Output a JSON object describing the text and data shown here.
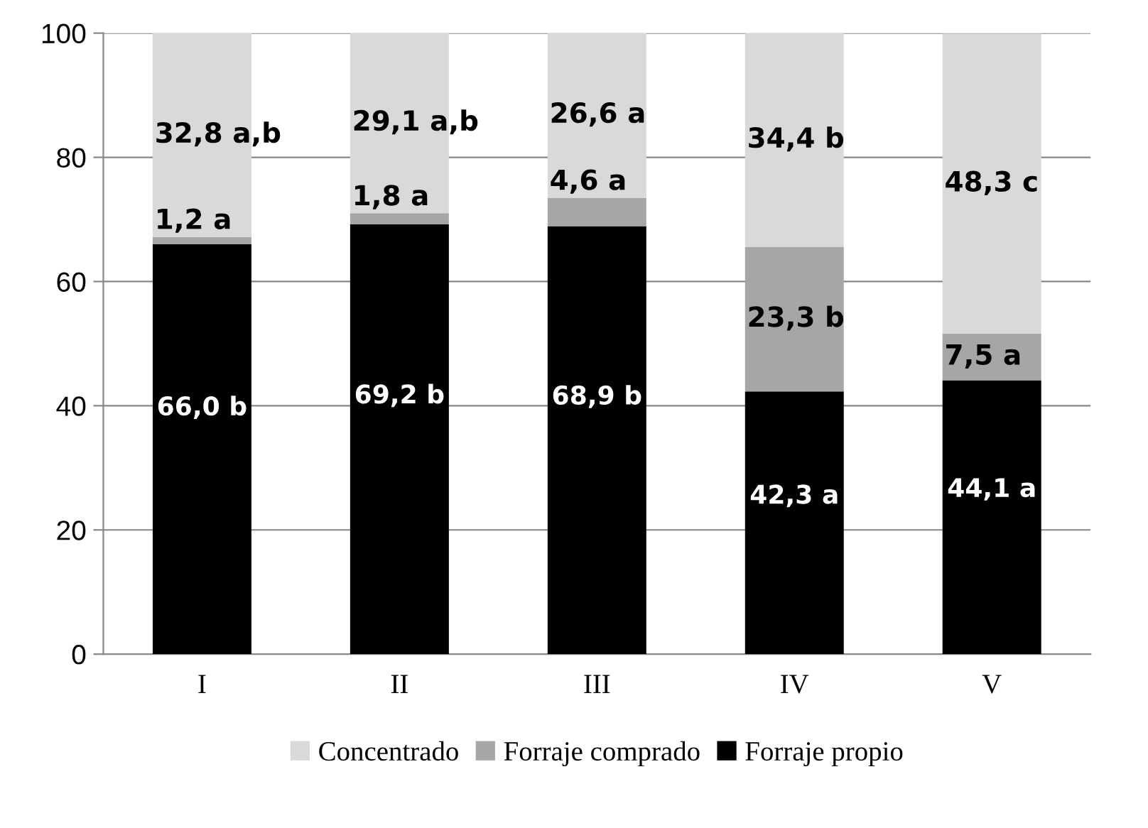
{
  "chart_data": {
    "type": "bar",
    "stacked": true,
    "categories": [
      "I",
      "II",
      "III",
      "IV",
      "V"
    ],
    "series": [
      {
        "name": "Forraje propio",
        "color": "#000000",
        "values": [
          66.0,
          69.2,
          68.9,
          42.3,
          44.1
        ],
        "value_labels": [
          "66,0 b",
          "69,2 b",
          "68,9 b",
          "42,3 a",
          "44,1 a"
        ]
      },
      {
        "name": "Forraje comprado",
        "color": "#a6a6a6",
        "values": [
          1.2,
          1.8,
          4.6,
          23.3,
          7.5
        ],
        "value_labels": [
          "1,2 a",
          "1,8 a",
          "4,6 a",
          "23,3 b",
          "7,5 a"
        ]
      },
      {
        "name": "Concentrado",
        "color": "#d9d9d9",
        "values": [
          32.8,
          29.1,
          26.6,
          34.4,
          48.3
        ],
        "value_labels": [
          "32,8 a,b",
          "29,1 a,b",
          "26,6 a",
          "34,4 b",
          "48,3 c"
        ]
      }
    ],
    "ylim": [
      0,
      100
    ],
    "yticks": [
      0,
      20,
      40,
      60,
      80,
      100
    ],
    "grid": "y",
    "legend": "bottom"
  }
}
